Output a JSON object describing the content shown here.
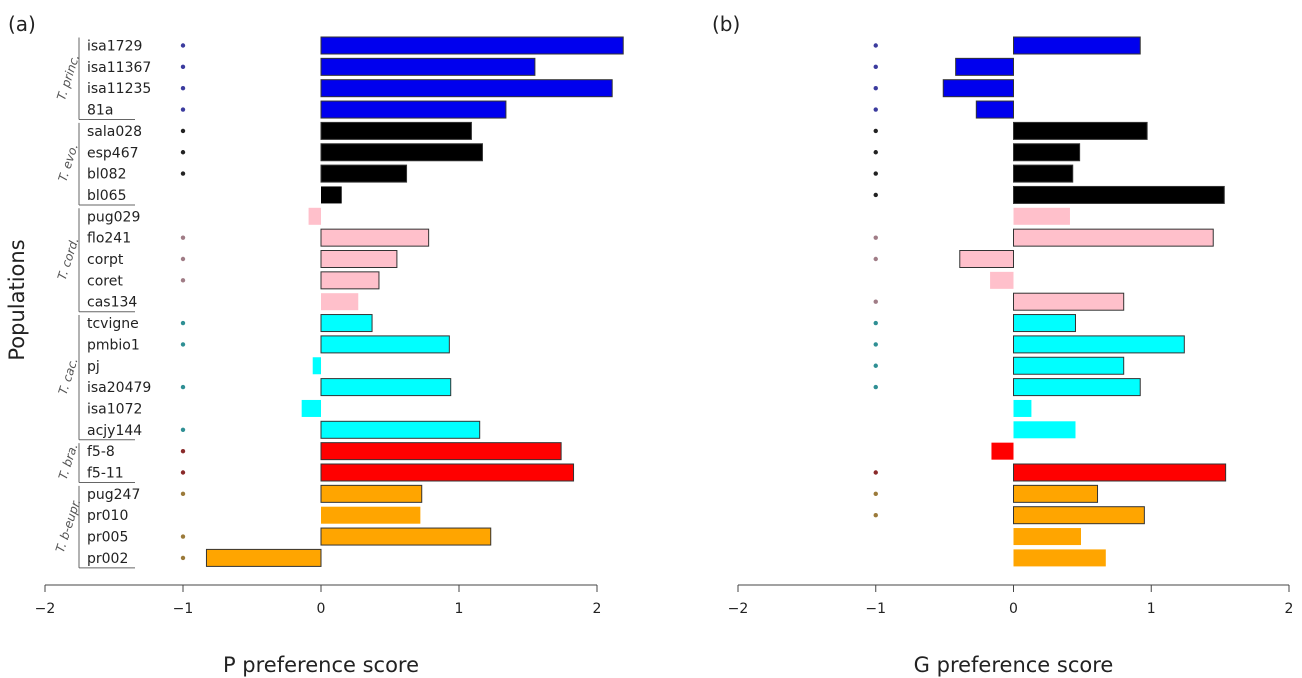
{
  "chart_data": {
    "type": "bar",
    "orientation": "horizontal",
    "ylabel": "Populations",
    "categories": [
      "isa1729",
      "isa11367",
      "isa11235",
      "81a",
      "sala028",
      "esp467",
      "bl082",
      "bl065",
      "pug029",
      "flo241",
      "corpt",
      "coret",
      "cas134",
      "tcvigne",
      "pmbio1",
      "pj",
      "isa20479",
      "isa1072",
      "acjy144",
      "f5-8",
      "f5-11",
      "pug247",
      "pr010",
      "pr005",
      "pr002"
    ],
    "groups": [
      {
        "name": "T. princ.",
        "members": [
          "isa1729",
          "isa11367",
          "isa11235",
          "81a"
        ],
        "color": "#0000ee"
      },
      {
        "name": "T. evo.",
        "members": [
          "sala028",
          "esp467",
          "bl082",
          "bl065"
        ],
        "color": "#000000"
      },
      {
        "name": "T. cord.",
        "members": [
          "pug029",
          "flo241",
          "corpt",
          "coret",
          "cas134"
        ],
        "color": "#ffc0cb"
      },
      {
        "name": "T. cac.",
        "members": [
          "tcvigne",
          "pmbio1",
          "pj",
          "isa20479",
          "isa1072",
          "acjy144"
        ],
        "color": "#00ffff"
      },
      {
        "name": "T. bra.",
        "members": [
          "f5-8",
          "f5-11"
        ],
        "color": "#ff0000"
      },
      {
        "name": "T. b-eupr.",
        "members": [
          "pug247",
          "pr010",
          "pr005",
          "pr002"
        ],
        "color": "#ffa500"
      }
    ],
    "panels": [
      {
        "label": "(a)",
        "xlabel": "P preference score",
        "xlim": [
          -2,
          2
        ],
        "ticks": [
          "−2",
          "−1",
          "0",
          "1",
          "2"
        ],
        "values": [
          2.19,
          1.55,
          2.11,
          1.34,
          1.09,
          1.17,
          0.62,
          0.15,
          -0.09,
          0.78,
          0.55,
          0.42,
          0.27,
          0.37,
          0.93,
          -0.06,
          0.94,
          -0.14,
          1.15,
          1.74,
          1.83,
          0.73,
          0.72,
          1.23,
          -0.83
        ],
        "significant": [
          true,
          true,
          true,
          true,
          true,
          true,
          true,
          false,
          false,
          true,
          true,
          true,
          false,
          true,
          true,
          false,
          true,
          false,
          true,
          true,
          true,
          true,
          false,
          true,
          true
        ]
      },
      {
        "label": "(b)",
        "xlabel": "G preference score",
        "xlim": [
          -2,
          2
        ],
        "ticks": [
          "−2",
          "−1",
          "0",
          "1",
          "2"
        ],
        "values": [
          0.92,
          -0.42,
          -0.51,
          -0.27,
          0.97,
          0.48,
          0.43,
          1.53,
          0.41,
          1.45,
          -0.39,
          -0.17,
          0.8,
          0.45,
          1.24,
          0.8,
          0.92,
          0.13,
          0.45,
          -0.16,
          1.54,
          0.61,
          0.95,
          0.49,
          0.67
        ],
        "significant": [
          true,
          true,
          true,
          true,
          true,
          true,
          true,
          true,
          false,
          true,
          true,
          false,
          true,
          true,
          true,
          true,
          true,
          false,
          false,
          false,
          true,
          true,
          true,
          false,
          false
        ]
      }
    ]
  }
}
